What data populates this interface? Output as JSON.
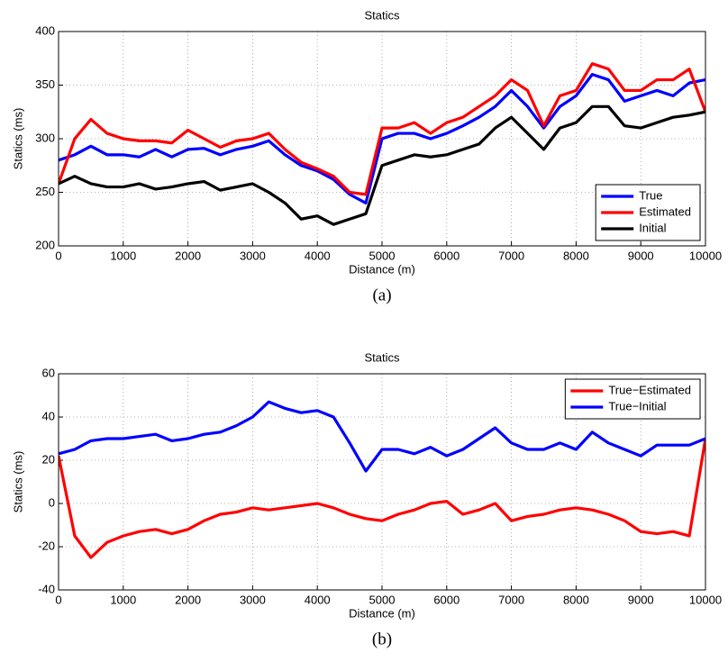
{
  "chart_data": [
    {
      "type": "line",
      "title": "Statics",
      "xlabel": "Distance (m)",
      "ylabel": "Statics (ms)",
      "caption": "(a)",
      "x": [
        0,
        250,
        500,
        750,
        1000,
        1250,
        1500,
        1750,
        2000,
        2250,
        2500,
        2750,
        3000,
        3250,
        3500,
        3750,
        4000,
        4250,
        4500,
        4750,
        5000,
        5250,
        5500,
        5750,
        6000,
        6250,
        6500,
        6750,
        7000,
        7250,
        7500,
        7750,
        8000,
        8250,
        8500,
        8750,
        9000,
        9250,
        9500,
        9750,
        10000
      ],
      "series": [
        {
          "name": "True",
          "color": "#0000ff",
          "values": [
            280,
            285,
            293,
            285,
            285,
            283,
            290,
            283,
            290,
            291,
            285,
            290,
            293,
            298,
            285,
            275,
            270,
            262,
            248,
            240,
            300,
            305,
            305,
            300,
            305,
            312,
            320,
            330,
            345,
            330,
            310,
            330,
            340,
            360,
            355,
            335,
            340,
            345,
            340,
            352,
            355
          ]
        },
        {
          "name": "Estimated",
          "color": "#ff0000",
          "values": [
            258,
            300,
            318,
            305,
            300,
            298,
            298,
            296,
            308,
            300,
            292,
            298,
            300,
            305,
            290,
            278,
            272,
            265,
            250,
            248,
            310,
            310,
            315,
            305,
            315,
            320,
            330,
            340,
            355,
            345,
            312,
            340,
            345,
            370,
            365,
            345,
            345,
            355,
            355,
            365,
            325
          ]
        },
        {
          "name": "Initial",
          "color": "#000000",
          "values": [
            258,
            265,
            258,
            255,
            255,
            258,
            253,
            255,
            258,
            260,
            252,
            255,
            258,
            250,
            240,
            225,
            228,
            220,
            225,
            230,
            275,
            280,
            285,
            283,
            285,
            290,
            295,
            310,
            320,
            305,
            290,
            310,
            315,
            330,
            330,
            312,
            310,
            315,
            320,
            322,
            325
          ]
        }
      ],
      "xlim": [
        0,
        10000
      ],
      "xticks": [
        0,
        1000,
        2000,
        3000,
        4000,
        5000,
        6000,
        7000,
        8000,
        9000,
        10000
      ],
      "ylim": [
        200,
        400
      ],
      "yticks": [
        200,
        250,
        300,
        350,
        400
      ],
      "grid": true,
      "legend": "lower right"
    },
    {
      "type": "line",
      "title": "Statics",
      "xlabel": "Distance (m)",
      "ylabel": "Statics (ms)",
      "caption": "(b)",
      "x": [
        0,
        250,
        500,
        750,
        1000,
        1250,
        1500,
        1750,
        2000,
        2250,
        2500,
        2750,
        3000,
        3250,
        3500,
        3750,
        4000,
        4250,
        4500,
        4750,
        5000,
        5250,
        5500,
        5750,
        6000,
        6250,
        6500,
        6750,
        7000,
        7250,
        7500,
        7750,
        8000,
        8250,
        8500,
        8750,
        9000,
        9250,
        9500,
        9750,
        10000
      ],
      "series": [
        {
          "name": "True−Estimated",
          "color": "#ff0000",
          "values": [
            22,
            -15,
            -25,
            -18,
            -15,
            -13,
            -12,
            -14,
            -12,
            -8,
            -5,
            -4,
            -2,
            -3,
            -2,
            -1,
            0,
            -2,
            -5,
            -7,
            -8,
            -5,
            -3,
            0,
            1,
            -5,
            -3,
            0,
            -8,
            -6,
            -5,
            -3,
            -2,
            -3,
            -5,
            -8,
            -13,
            -14,
            -13,
            -15,
            30
          ]
        },
        {
          "name": "True−Initial",
          "color": "#0000ff",
          "values": [
            23,
            25,
            29,
            30,
            30,
            31,
            32,
            29,
            30,
            32,
            33,
            36,
            40,
            47,
            44,
            42,
            43,
            40,
            28,
            15,
            25,
            25,
            23,
            26,
            22,
            25,
            30,
            35,
            28,
            25,
            25,
            28,
            25,
            33,
            28,
            25,
            22,
            27,
            27,
            27,
            30
          ]
        }
      ],
      "xlim": [
        0,
        10000
      ],
      "xticks": [
        0,
        1000,
        2000,
        3000,
        4000,
        5000,
        6000,
        7000,
        8000,
        9000,
        10000
      ],
      "ylim": [
        -40,
        60
      ],
      "yticks": [
        -40,
        -20,
        0,
        20,
        40,
        60
      ],
      "grid": true,
      "legend": "upper right"
    }
  ]
}
